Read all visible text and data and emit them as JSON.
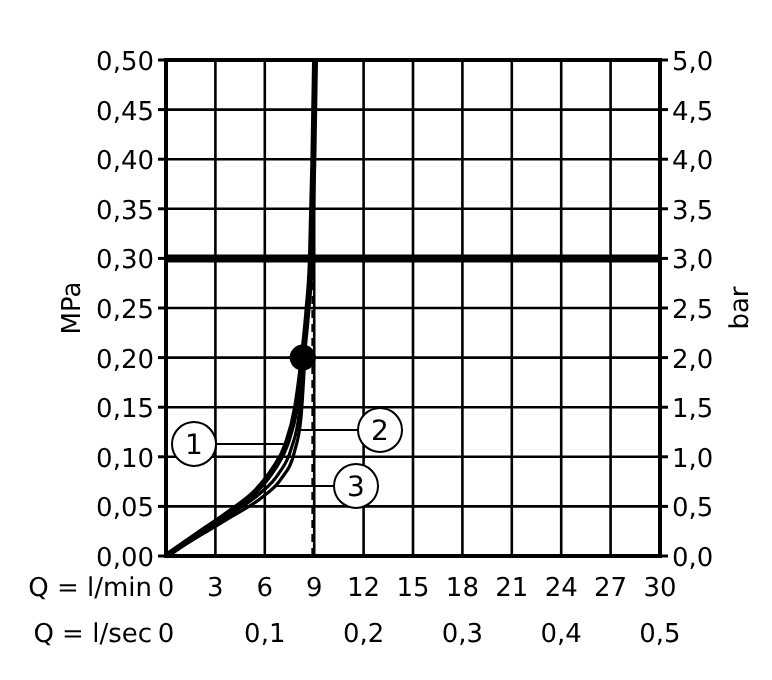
{
  "chart_data": {
    "type": "line",
    "xlabel": "Q = l/min",
    "x2label": "Q = l/sec",
    "ylabel": "MPa",
    "y2label": "bar",
    "xlim": [
      0,
      30
    ],
    "xticks": [
      0,
      3,
      6,
      9,
      12,
      15,
      18,
      21,
      24,
      27,
      30
    ],
    "x2lim": [
      0,
      0.5
    ],
    "x2ticks": [
      {
        "value": 0,
        "label": "0"
      },
      {
        "value": 0.1,
        "label": "0,1"
      },
      {
        "value": 0.2,
        "label": "0,2"
      },
      {
        "value": 0.3,
        "label": "0,3"
      },
      {
        "value": 0.4,
        "label": "0,4"
      },
      {
        "value": 0.5,
        "label": "0,5"
      }
    ],
    "ylim": [
      0,
      0.5
    ],
    "yticks": [
      {
        "value": 0,
        "label": "0,00"
      },
      {
        "value": 0.05,
        "label": "0,05"
      },
      {
        "value": 0.1,
        "label": "0,10"
      },
      {
        "value": 0.15,
        "label": "0,15"
      },
      {
        "value": 0.2,
        "label": "0,20"
      },
      {
        "value": 0.25,
        "label": "0,25"
      },
      {
        "value": 0.3,
        "label": "0,30"
      },
      {
        "value": 0.35,
        "label": "0,35"
      },
      {
        "value": 0.4,
        "label": "0,40"
      },
      {
        "value": 0.45,
        "label": "0,45"
      },
      {
        "value": 0.5,
        "label": "0,50"
      }
    ],
    "y2lim": [
      0,
      5
    ],
    "y2ticks": [
      {
        "value": 0,
        "label": "0,0"
      },
      {
        "value": 0.5,
        "label": "0,5"
      },
      {
        "value": 1,
        "label": "1,0"
      },
      {
        "value": 1.5,
        "label": "1,5"
      },
      {
        "value": 2,
        "label": "2,0"
      },
      {
        "value": 2.5,
        "label": "2,5"
      },
      {
        "value": 3,
        "label": "3,0"
      },
      {
        "value": 3.5,
        "label": "3,5"
      },
      {
        "value": 4,
        "label": "4,0"
      },
      {
        "value": 4.5,
        "label": "4,5"
      },
      {
        "value": 5,
        "label": "5,0"
      }
    ],
    "grid": true,
    "marker": "none",
    "line_style": "solid",
    "series": [
      {
        "name": "1",
        "color": "#000000",
        "x": [
          0,
          2,
          4,
          5.5,
          6.5,
          7.3,
          7.9,
          8.3,
          8.6,
          8.8,
          8.95,
          9.05
        ],
        "values": [
          0,
          0.023,
          0.046,
          0.066,
          0.087,
          0.112,
          0.15,
          0.2,
          0.25,
          0.3,
          0.4,
          0.5
        ]
      },
      {
        "name": "2",
        "color": "#000000",
        "x": [
          0,
          2,
          4,
          5.7,
          6.8,
          7.6,
          8.1,
          8.35
        ],
        "values": [
          0,
          0.021,
          0.043,
          0.063,
          0.082,
          0.108,
          0.145,
          0.2
        ]
      },
      {
        "name": "3",
        "color": "#000000",
        "x": [
          0,
          2,
          4,
          5.9,
          7,
          7.8,
          8.2,
          8.4
        ],
        "values": [
          0,
          0.02,
          0.04,
          0.06,
          0.078,
          0.105,
          0.14,
          0.19
        ]
      },
      {
        "type": "scatter",
        "color": "#000000",
        "marker": "circle",
        "x": [
          8.3
        ],
        "values": [
          0.2
        ]
      }
    ],
    "ref_lines": [
      {
        "axis": "y",
        "value": 0.3,
        "line_style": "solid"
      },
      {
        "axis": "x",
        "value": 8.9,
        "line_style": "dashed"
      }
    ]
  }
}
